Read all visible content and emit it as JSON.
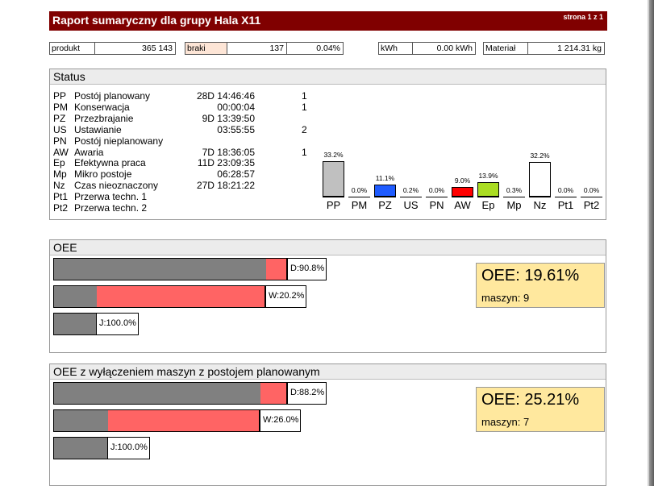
{
  "header": {
    "title": "Raport sumaryczny dla grupy Hala X11",
    "page": "strona 1 z 1"
  },
  "kpis": {
    "produkt": {
      "label": "produkt",
      "value": "365 143"
    },
    "braki": {
      "label": "braki",
      "value": "137",
      "percent": "0.04%"
    },
    "kwh": {
      "label": "kWh",
      "value": "0.00 kWh"
    },
    "material": {
      "label": "Materiał",
      "value": "1 214.31 kg"
    }
  },
  "status": {
    "title": "Status",
    "rows": [
      {
        "code": "PP",
        "name": "Postój planowany",
        "time": "28D 14:46:46",
        "count": "1"
      },
      {
        "code": "PM",
        "name": "Konserwacja",
        "time": "00:00:04",
        "count": "1"
      },
      {
        "code": "PZ",
        "name": "Przezbrajanie",
        "time": "9D 13:39:50",
        "count": ""
      },
      {
        "code": "US",
        "name": "Ustawianie",
        "time": "03:55:55",
        "count": "2"
      },
      {
        "code": "PN",
        "name": "Postój nieplanowany",
        "time": "",
        "count": ""
      },
      {
        "code": "AW",
        "name": "Awaria",
        "time": "7D 18:36:05",
        "count": "1"
      },
      {
        "code": "Ep",
        "name": "Efektywna praca",
        "time": "11D 23:09:35",
        "count": ""
      },
      {
        "code": "Mp",
        "name": "Mikro postoje",
        "time": "06:28:57",
        "count": ""
      },
      {
        "code": "Nz",
        "name": "Czas nieoznaczony",
        "time": "27D 18:21:22",
        "count": ""
      },
      {
        "code": "Pt1",
        "name": "Przerwa techn. 1",
        "time": "",
        "count": ""
      },
      {
        "code": "Pt2",
        "name": "Przerwa techn. 2",
        "time": "",
        "count": ""
      }
    ]
  },
  "chart_data": {
    "type": "bar",
    "categories": [
      "PP",
      "PM",
      "PZ",
      "US",
      "PN",
      "AW",
      "Ep",
      "Mp",
      "Nz",
      "Pt1",
      "Pt2"
    ],
    "values": [
      33.2,
      0.0,
      11.1,
      0.2,
      0.0,
      9.0,
      13.9,
      0.3,
      32.2,
      0.0,
      0.0
    ],
    "labels": [
      "33.2%",
      "0.0%",
      "11.1%",
      "0.2%",
      "0.0%",
      "9.0%",
      "13.9%",
      "0.3%",
      "32.2%",
      "0.0%",
      "0.0%"
    ],
    "colors": [
      "#c0c0c0",
      "#ffffff",
      "#1e5bff",
      "#ffffff",
      "#ffffff",
      "#ff0000",
      "#aadd22",
      "#ffffff",
      "#ffffff",
      "#ffffff",
      "#ffffff"
    ],
    "ylim": [
      0,
      33.2
    ],
    "title": "",
    "xlabel": "",
    "ylabel": ""
  },
  "oee": {
    "title": "OEE",
    "bars": [
      {
        "label": "D:90.8%",
        "fill": 0.908
      },
      {
        "label": "W:20.2%",
        "fill": 0.202
      },
      {
        "label": "J:100.0%",
        "fill": 1.0
      }
    ],
    "summary": {
      "value": "OEE: 19.61%",
      "machines": "maszyn: 9"
    }
  },
  "oee2": {
    "title": "OEE z wyłączeniem maszyn z postojem planowanym",
    "bars": [
      {
        "label": "D:88.2%",
        "fill": 0.882
      },
      {
        "label": "W:26.0%",
        "fill": 0.26
      },
      {
        "label": "J:100.0%",
        "fill": 1.0
      }
    ],
    "summary": {
      "value": "OEE: 25.21%",
      "machines": "maszyn: 7"
    }
  }
}
